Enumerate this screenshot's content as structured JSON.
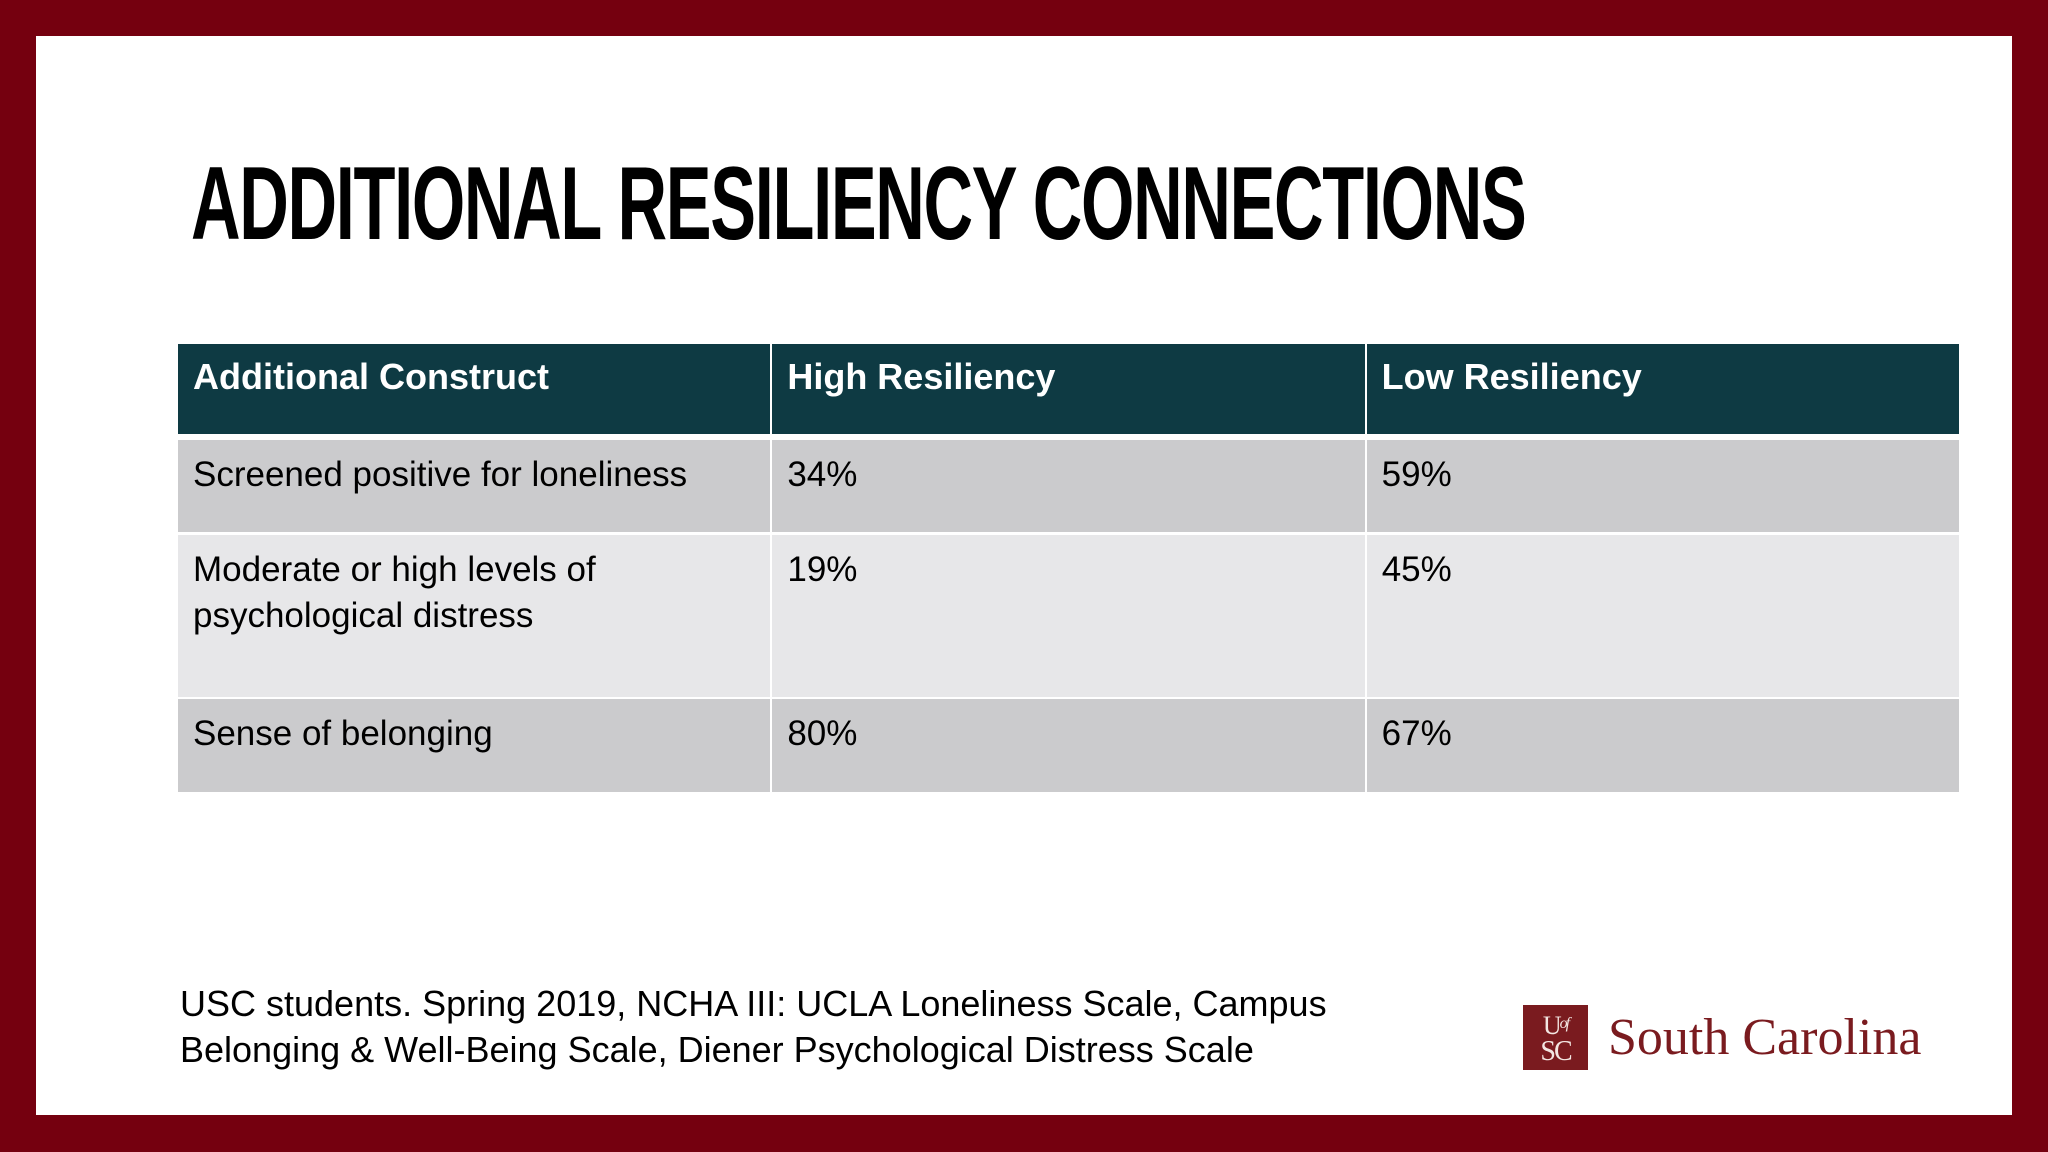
{
  "slide": {
    "title": "ADDITIONAL RESILIENCY CONNECTIONS",
    "table": {
      "headers": [
        "Additional Construct",
        "High Resiliency",
        "Low Resiliency"
      ],
      "rows": [
        [
          "Screened positive for loneliness",
          "34%",
          "59%"
        ],
        [
          "Moderate or high levels of psychological distress",
          "19%",
          "45%"
        ],
        [
          "Sense of belonging",
          "80%",
          "67%"
        ]
      ]
    },
    "footnote": {
      "line1": "USC students. Spring 2019, NCHA III: UCLA Loneliness Scale, Campus",
      "line2": "Belonging & Well-Being Scale, Diener Psychological Distress Scale"
    },
    "logo": {
      "mark_line1_a": "U",
      "mark_line1_b": "of",
      "mark_line2": "SC",
      "wordmark": "South Carolina"
    }
  },
  "colors": {
    "frame": "#75000f",
    "header_bg": "#0e3a43",
    "row_dark": "#cbcbcd",
    "row_light": "#e7e7e9",
    "brand": "#7a1b1f"
  }
}
